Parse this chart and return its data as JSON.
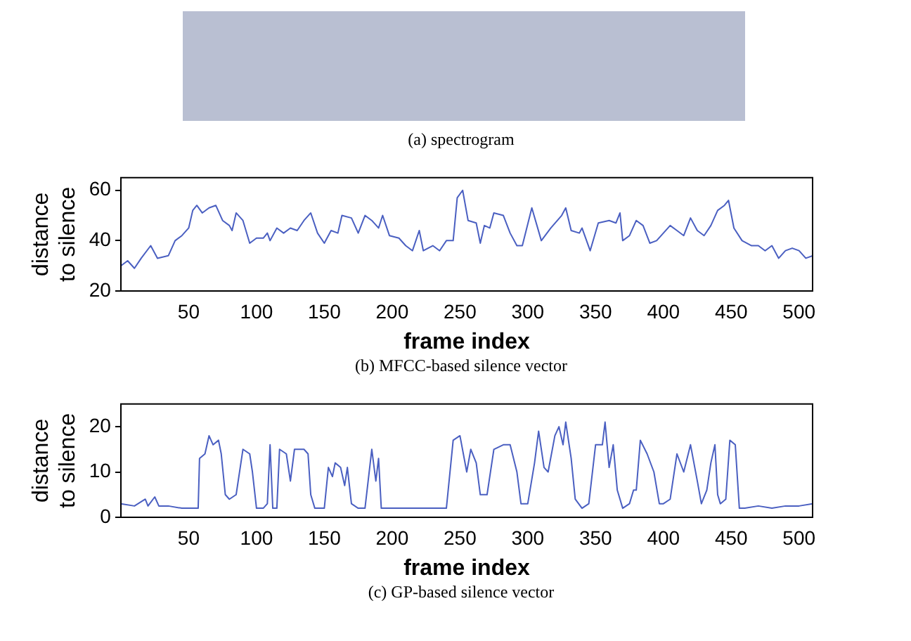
{
  "chart_data": [
    {
      "type": "other",
      "annotations": [
        "(a) spectrogram"
      ]
    },
    {
      "type": "line",
      "xlabel": "frame index",
      "ylabel": "distance\nto silence",
      "annotations": [
        "(b) MFCC-based silence vector"
      ],
      "xlim": [
        0,
        510
      ],
      "xticks": [
        50,
        100,
        150,
        200,
        250,
        300,
        350,
        400,
        450,
        500
      ],
      "ylim": [
        20,
        65
      ],
      "yticks": [
        20,
        40,
        60
      ],
      "x": [
        0,
        5,
        10,
        15,
        22,
        27,
        35,
        40,
        45,
        50,
        53,
        56,
        60,
        65,
        70,
        75,
        80,
        82,
        85,
        90,
        95,
        100,
        105,
        108,
        110,
        115,
        120,
        125,
        130,
        135,
        140,
        145,
        150,
        155,
        160,
        163,
        170,
        175,
        180,
        185,
        190,
        193,
        198,
        205,
        210,
        215,
        220,
        223,
        230,
        235,
        240,
        245,
        248,
        252,
        256,
        262,
        265,
        268,
        272,
        275,
        282,
        287,
        292,
        296,
        303,
        310,
        317,
        325,
        328,
        332,
        338,
        340,
        346,
        352,
        360,
        365,
        368,
        370,
        375,
        380,
        385,
        390,
        395,
        405,
        410,
        415,
        420,
        425,
        430,
        435,
        440,
        445,
        448,
        452,
        458,
        465,
        470,
        475,
        480,
        485,
        490,
        495,
        500,
        505,
        510
      ],
      "series": [
        {
          "color": "#4a5fc1",
          "values": [
            30,
            32,
            29,
            33,
            38,
            33,
            34,
            40,
            42,
            45,
            52,
            54,
            51,
            53,
            54,
            48,
            46,
            44,
            51,
            48,
            39,
            41,
            41,
            43,
            40,
            45,
            43,
            45,
            44,
            48,
            51,
            43,
            39,
            44,
            43,
            50,
            49,
            43,
            50,
            48,
            45,
            50,
            42,
            41,
            38,
            36,
            44,
            36,
            38,
            36,
            40,
            40,
            57,
            60,
            48,
            47,
            39,
            46,
            45,
            51,
            50,
            43,
            38,
            38,
            53,
            40,
            45,
            50,
            53,
            44,
            43,
            45,
            36,
            47,
            48,
            47,
            51,
            40,
            42,
            48,
            46,
            39,
            40,
            46,
            44,
            42,
            49,
            44,
            42,
            46,
            52,
            54,
            56,
            45,
            40,
            38,
            38,
            36,
            38,
            33,
            36,
            37,
            36,
            33,
            34
          ]
        }
      ]
    },
    {
      "type": "line",
      "xlabel": "frame index",
      "ylabel": "distance\nto silence",
      "annotations": [
        "(c) GP-based silence vector"
      ],
      "xlim": [
        0,
        510
      ],
      "xticks": [
        50,
        100,
        150,
        200,
        250,
        300,
        350,
        400,
        450,
        500
      ],
      "ylim": [
        0,
        25
      ],
      "yticks": [
        0,
        10,
        20
      ],
      "x": [
        0,
        10,
        18,
        20,
        25,
        28,
        35,
        45,
        55,
        57,
        58,
        62,
        65,
        68,
        72,
        74,
        77,
        80,
        85,
        88,
        90,
        95,
        97,
        100,
        105,
        108,
        110,
        112,
        115,
        117,
        122,
        125,
        128,
        135,
        138,
        140,
        143,
        150,
        153,
        156,
        158,
        162,
        165,
        167,
        170,
        175,
        180,
        185,
        188,
        190,
        192,
        200,
        220,
        230,
        240,
        245,
        250,
        255,
        258,
        262,
        265,
        270,
        275,
        282,
        287,
        292,
        295,
        300,
        305,
        308,
        312,
        315,
        320,
        323,
        326,
        328,
        332,
        335,
        340,
        345,
        350,
        355,
        357,
        360,
        363,
        366,
        370,
        375,
        378,
        380,
        383,
        388,
        393,
        397,
        400,
        405,
        410,
        415,
        420,
        425,
        428,
        432,
        435,
        438,
        440,
        442,
        446,
        449,
        453,
        456,
        460,
        470,
        480,
        490,
        500,
        510
      ],
      "series": [
        {
          "color": "#4a5fc1",
          "values": [
            3,
            2.5,
            4,
            2.5,
            4.5,
            2.5,
            2.5,
            2,
            2,
            2,
            13,
            14,
            18,
            16,
            17,
            14,
            5,
            4,
            5,
            11,
            15,
            14,
            10,
            2,
            2,
            3,
            16,
            2,
            2,
            15,
            14,
            8,
            15,
            15,
            14,
            5,
            2,
            2,
            11,
            9,
            12,
            11,
            7,
            11,
            3,
            2,
            2,
            15,
            8,
            13,
            2,
            2,
            2,
            2,
            2,
            17,
            18,
            10,
            15,
            12,
            5,
            5,
            15,
            16,
            16,
            10,
            3,
            3,
            12,
            19,
            11,
            10,
            18,
            20,
            16,
            21,
            13,
            4,
            2,
            3,
            16,
            16,
            21,
            11,
            16,
            6,
            2,
            3,
            6,
            6,
            17,
            14,
            10,
            3,
            3,
            4,
            14,
            10,
            16,
            8,
            3,
            6,
            12,
            16,
            5,
            3,
            4,
            17,
            16,
            2,
            2,
            2.5,
            2,
            2.5,
            2.5,
            3
          ]
        }
      ]
    }
  ]
}
